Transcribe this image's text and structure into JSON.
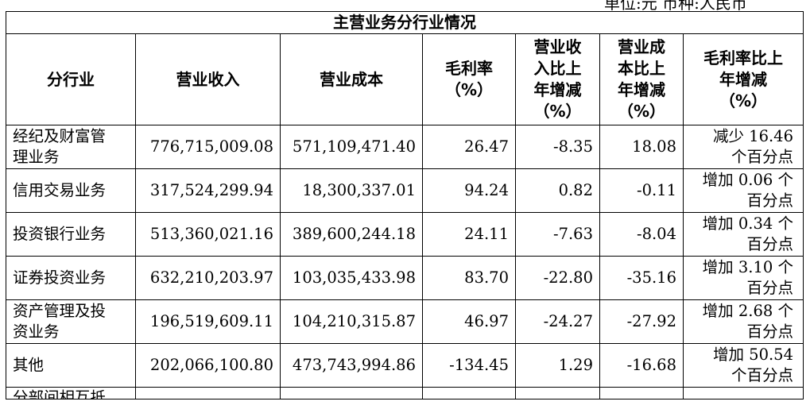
{
  "unit_line": "单位:元  币种:人民币",
  "table": {
    "title": "主营业务分行业情况",
    "columns": [
      "分行业",
      "营业收入",
      "营业成本",
      "毛利率\n（%）",
      "营业收\n入比上\n年增减\n（%）",
      "营业成\n本比上\n年增减\n（%）",
      "毛利率比上\n年增减\n（%）"
    ],
    "rows": [
      {
        "industry": "经纪及财富管\n理业务",
        "revenue": "776,715,009.08",
        "cost": "571,109,471.40",
        "gross_margin": "26.47",
        "revenue_change": "-8.35",
        "cost_change": "18.08",
        "margin_change": "减少 16.46\n个百分点"
      },
      {
        "industry": "信用交易业务",
        "revenue": "317,524,299.94",
        "cost": "18,300,337.01",
        "gross_margin": "94.24",
        "revenue_change": "0.82",
        "cost_change": "-0.11",
        "margin_change": "增加 0.06 个\n百分点"
      },
      {
        "industry": "投资银行业务",
        "revenue": "513,360,021.16",
        "cost": "389,600,244.18",
        "gross_margin": "24.11",
        "revenue_change": "-7.63",
        "cost_change": "-8.04",
        "margin_change": "增加 0.34 个\n百分点"
      },
      {
        "industry": "证券投资业务",
        "revenue": "632,210,203.97",
        "cost": "103,035,433.98",
        "gross_margin": "83.70",
        "revenue_change": "-22.80",
        "cost_change": "-35.16",
        "margin_change": "增加 3.10 个\n百分点"
      },
      {
        "industry": "资产管理及投\n资业务",
        "revenue": "196,519,609.11",
        "cost": "104,210,315.87",
        "gross_margin": "46.97",
        "revenue_change": "-24.27",
        "cost_change": "-27.92",
        "margin_change": "增加 2.68 个\n百分点"
      },
      {
        "industry": "其他",
        "revenue": "202,066,100.80",
        "cost": "473,743,994.86",
        "gross_margin": "-134.45",
        "revenue_change": "1.29",
        "cost_change": "-16.68",
        "margin_change": "增加 50.54\n个百分点"
      }
    ],
    "partial_row_label": "分部间相互抵"
  }
}
